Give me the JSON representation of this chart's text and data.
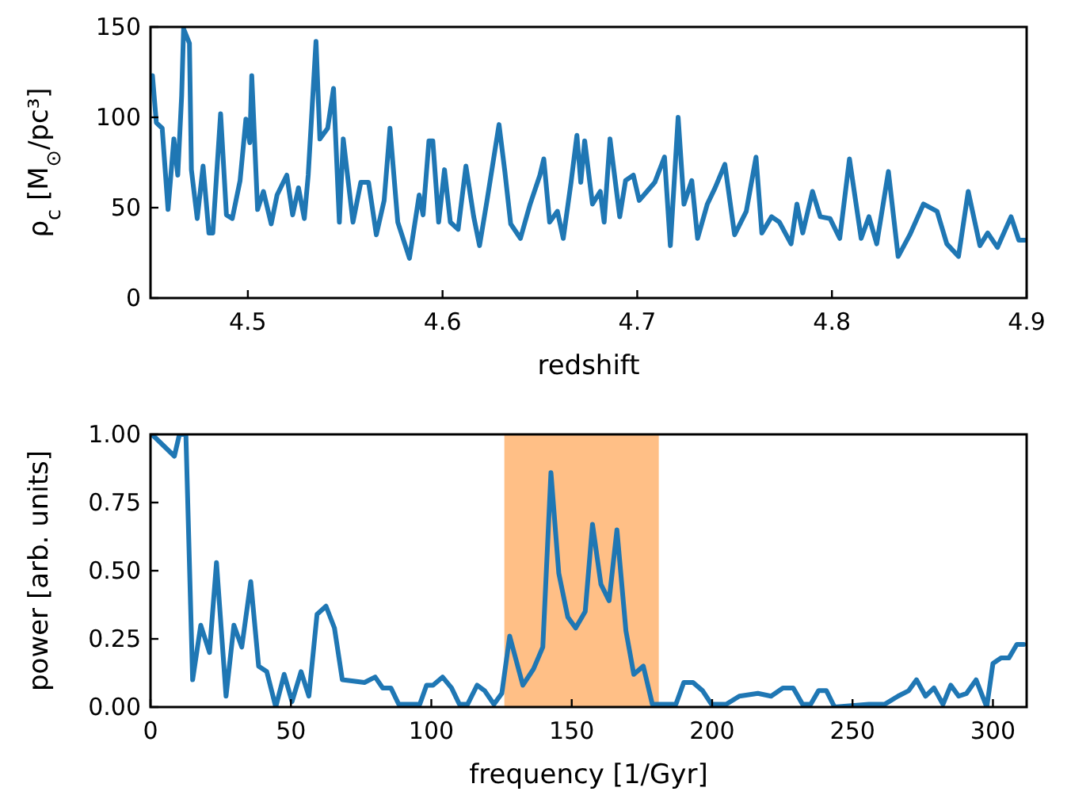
{
  "chart_data": [
    {
      "type": "line",
      "xlabel": "redshift",
      "ylabel": "ρ$_{c}$ [M$_{⊙}$/pc³]",
      "xlim": [
        4.45,
        4.9
      ],
      "ylim": [
        0,
        150
      ],
      "xticks": [
        4.5,
        4.6,
        4.7,
        4.8,
        4.9
      ],
      "yticks": [
        0,
        50,
        100,
        150
      ],
      "color": "#1f77b4",
      "x": [
        4.451,
        4.453,
        4.456,
        4.459,
        4.462,
        4.464,
        4.466,
        4.467,
        4.47,
        4.471,
        4.474,
        4.477,
        4.48,
        4.482,
        4.486,
        4.489,
        4.492,
        4.496,
        4.499,
        4.501,
        4.502,
        4.505,
        4.508,
        4.512,
        4.515,
        4.52,
        4.523,
        4.526,
        4.529,
        4.531,
        4.535,
        4.537,
        4.541,
        4.544,
        4.547,
        4.549,
        4.554,
        4.558,
        4.562,
        4.566,
        4.57,
        4.573,
        4.577,
        4.583,
        4.588,
        4.59,
        4.593,
        4.595,
        4.598,
        4.601,
        4.604,
        4.608,
        4.612,
        4.616,
        4.619,
        4.623,
        4.629,
        4.632,
        4.635,
        4.64,
        4.645,
        4.65,
        4.652,
        4.655,
        4.659,
        4.662,
        4.666,
        4.669,
        4.671,
        4.673,
        4.677,
        4.681,
        4.683,
        4.686,
        4.691,
        4.694,
        4.698,
        4.701,
        4.705,
        4.709,
        4.714,
        4.717,
        4.721,
        4.724,
        4.728,
        4.731,
        4.736,
        4.74,
        4.745,
        4.75,
        4.756,
        4.761,
        4.764,
        4.769,
        4.773,
        4.779,
        4.782,
        4.785,
        4.79,
        4.794,
        4.799,
        4.804,
        4.809,
        4.815,
        4.819,
        4.823,
        4.829,
        4.834,
        4.84,
        4.847,
        4.854,
        4.859,
        4.865,
        4.87,
        4.876,
        4.88,
        4.885,
        4.892,
        4.896,
        4.899
      ],
      "values": [
        123,
        97,
        94,
        49,
        88,
        68,
        112,
        149,
        141,
        71,
        44,
        73,
        36,
        36,
        102,
        46,
        44,
        65,
        99,
        86,
        123,
        49,
        59,
        41,
        57,
        68,
        46,
        61,
        44,
        68,
        142,
        88,
        94,
        116,
        42,
        88,
        42,
        64,
        64,
        35,
        54,
        94,
        42,
        22,
        57,
        46,
        87,
        87,
        42,
        71,
        42,
        38,
        73,
        45,
        29,
        55,
        96,
        70,
        41,
        33,
        52,
        68,
        77,
        42,
        48,
        33,
        64,
        90,
        64,
        87,
        52,
        59,
        42,
        88,
        45,
        65,
        68,
        54,
        59,
        64,
        78,
        29,
        100,
        52,
        65,
        33,
        52,
        61,
        74,
        35,
        48,
        78,
        36,
        45,
        42,
        30,
        52,
        36,
        59,
        45,
        44,
        33,
        77,
        33,
        45,
        30,
        70,
        23,
        35,
        52,
        48,
        30,
        23,
        59,
        29,
        36,
        28,
        45,
        32,
        32
      ]
    },
    {
      "type": "line",
      "xlabel": "frequency [1/Gyr]",
      "ylabel": "power [arb. units]",
      "xlim": [
        0,
        312
      ],
      "ylim": [
        0,
        1
      ],
      "xticks": [
        0,
        50,
        100,
        150,
        200,
        250,
        300
      ],
      "yticks": [
        {
          "value": 0,
          "label": "0.00"
        },
        {
          "value": 0.25,
          "label": "0.25"
        },
        {
          "value": 0.5,
          "label": "0.50"
        },
        {
          "value": 0.75,
          "label": "0.75"
        },
        {
          "value": 1,
          "label": "1.00"
        }
      ],
      "color": "#1f77b4",
      "bands": [
        {
          "axis": "x",
          "from": 126,
          "to": 181,
          "color": "#ffbf86"
        }
      ],
      "x": [
        0.5,
        8.5,
        10.3,
        12.6,
        15,
        17.9,
        21,
        23.5,
        26.9,
        29.7,
        32.5,
        35.7,
        38.5,
        41.4,
        44.6,
        47.6,
        50.4,
        53.6,
        56.4,
        59.3,
        62.5,
        65.5,
        68.3,
        76.2,
        80,
        82.7,
        85.6,
        88.4,
        95.9,
        98.3,
        100.6,
        104,
        107.2,
        110,
        112.9,
        116.3,
        119,
        122.3,
        125.1,
        127.9,
        132.6,
        136.4,
        139.7,
        142.6,
        145.4,
        148.6,
        151.4,
        154.8,
        157.4,
        160.4,
        163.3,
        166.1,
        169.3,
        172.1,
        175.5,
        178.7,
        181.5,
        187.1,
        189.9,
        193.2,
        196.6,
        199.8,
        205,
        209.7,
        216.3,
        221,
        225.2,
        228.9,
        232.2,
        235.1,
        237.9,
        240.7,
        243.6,
        255.8,
        261.4,
        266.2,
        270,
        272.8,
        276,
        279,
        282.2,
        285,
        287.8,
        290.6,
        294,
        297.8,
        300,
        302.9,
        305.7,
        308.5,
        311
      ],
      "values": [
        1.0,
        0.92,
        1.0,
        1.0,
        0.1,
        0.3,
        0.2,
        0.53,
        0.04,
        0.3,
        0.22,
        0.46,
        0.15,
        0.13,
        0.0,
        0.12,
        0.02,
        0.13,
        0.04,
        0.34,
        0.37,
        0.29,
        0.1,
        0.09,
        0.11,
        0.07,
        0.07,
        0.01,
        0.01,
        0.08,
        0.08,
        0.11,
        0.07,
        0.01,
        0.01,
        0.08,
        0.06,
        0.01,
        0.05,
        0.26,
        0.08,
        0.14,
        0.22,
        0.86,
        0.49,
        0.33,
        0.29,
        0.35,
        0.67,
        0.45,
        0.39,
        0.65,
        0.28,
        0.12,
        0.15,
        0.01,
        0.01,
        0.01,
        0.09,
        0.09,
        0.06,
        0.01,
        0.01,
        0.04,
        0.05,
        0.04,
        0.07,
        0.07,
        0.01,
        0.01,
        0.06,
        0.06,
        0.0,
        0.01,
        0.01,
        0.04,
        0.06,
        0.1,
        0.04,
        0.07,
        0.01,
        0.08,
        0.04,
        0.05,
        0.1,
        0.0,
        0.16,
        0.18,
        0.18,
        0.23,
        0.23
      ]
    }
  ]
}
